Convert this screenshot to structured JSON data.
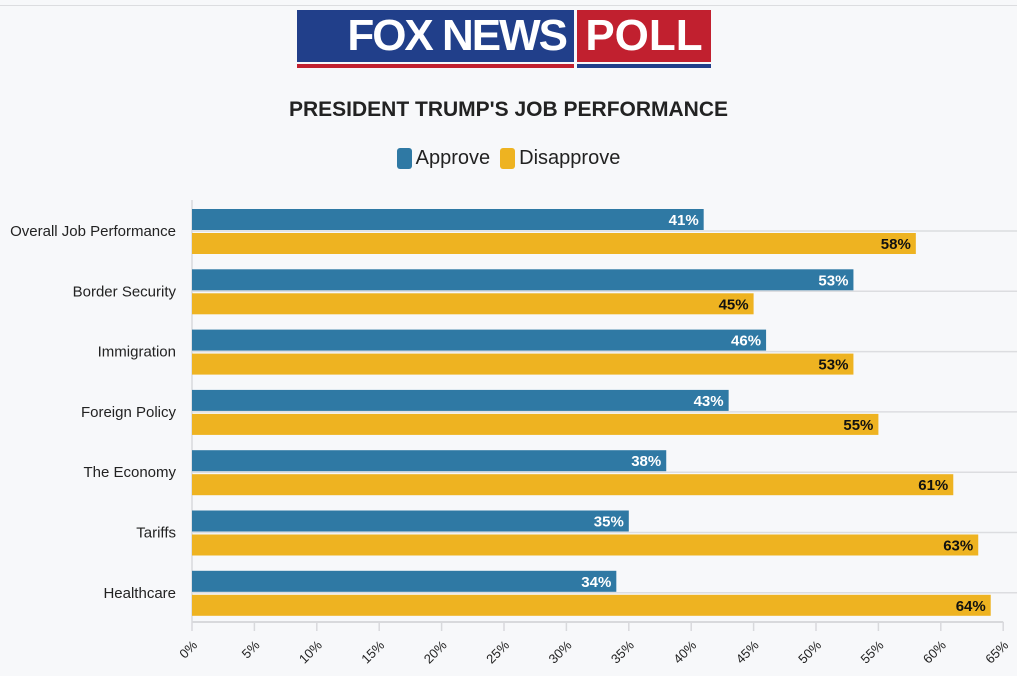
{
  "logo": {
    "left": "FOX NEWS",
    "right": "POLL"
  },
  "colors": {
    "approve": "#2f79a4",
    "disapprove": "#eeb321",
    "brand_blue": "#213f8a",
    "brand_red": "#c1202f"
  },
  "chart_data": {
    "type": "bar",
    "orientation": "horizontal",
    "title": "PRESIDENT TRUMP'S JOB PERFORMANCE",
    "categories": [
      "Overall Job Performance",
      "Border Security",
      "Immigration",
      "Foreign Policy",
      "The Economy",
      "Tariffs",
      "Healthcare"
    ],
    "series": [
      {
        "name": "Approve",
        "values": [
          41,
          53,
          46,
          43,
          38,
          35,
          34
        ]
      },
      {
        "name": "Disapprove",
        "values": [
          58,
          45,
          53,
          55,
          61,
          63,
          64
        ]
      }
    ],
    "xlim": [
      0,
      65
    ],
    "xticks": [
      "0%",
      "5%",
      "10%",
      "15%",
      "20%",
      "25%",
      "30%",
      "35%",
      "40%",
      "45%",
      "50%",
      "55%",
      "60%",
      "65%"
    ],
    "legend": "top-center",
    "grid": true
  }
}
